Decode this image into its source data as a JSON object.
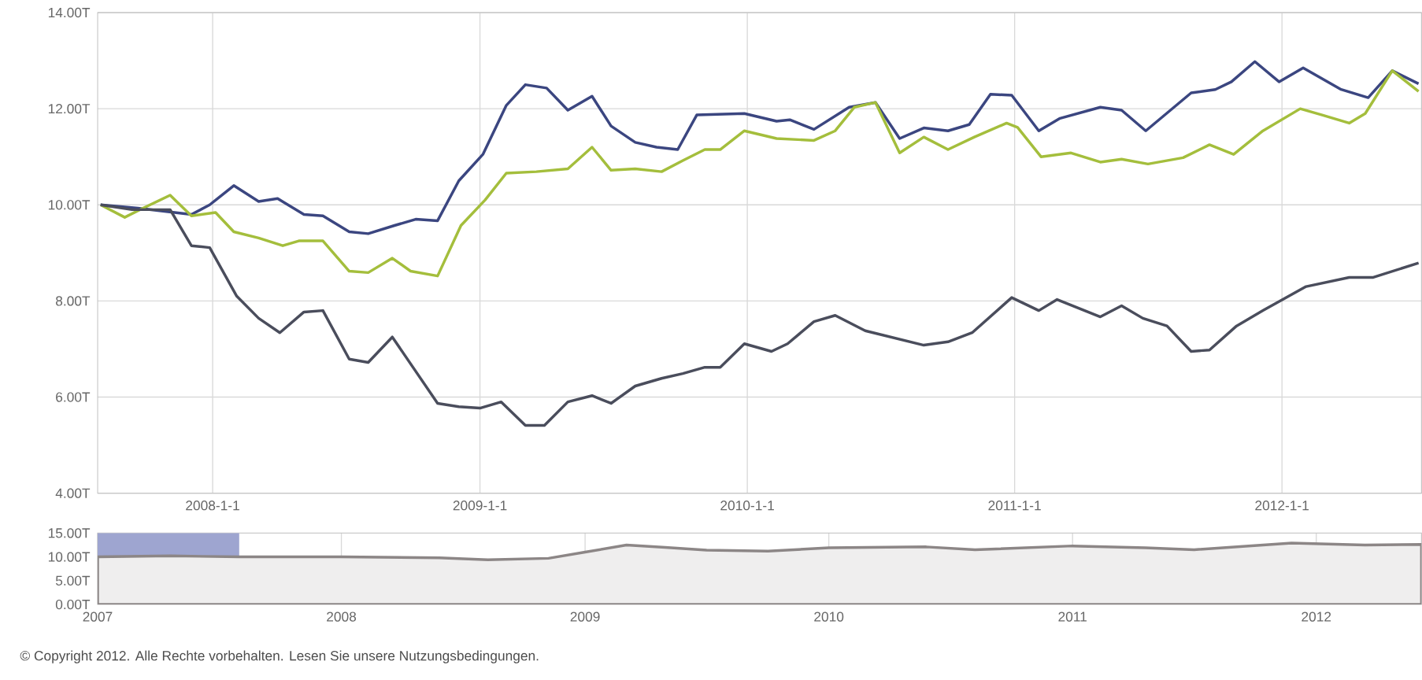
{
  "chart_data": [
    {
      "type": "line",
      "grid": true,
      "xlim": [
        "2007-07-28",
        "2012-07-10"
      ],
      "xticks": [
        {
          "value": "2008-01-01",
          "label": "2008-1-1"
        },
        {
          "value": "2009-01-01",
          "label": "2009-1-1"
        },
        {
          "value": "2010-01-01",
          "label": "2010-1-1"
        },
        {
          "value": "2011-01-01",
          "label": "2011-1-1"
        },
        {
          "value": "2012-01-01",
          "label": "2012-1-1"
        }
      ],
      "ylim": [
        4,
        14
      ],
      "yticks": [
        {
          "value": 4,
          "label": "4.00T"
        },
        {
          "value": 6,
          "label": "6.00T"
        },
        {
          "value": 8,
          "label": "8.00T"
        },
        {
          "value": 10,
          "label": "10.00T"
        },
        {
          "value": 12,
          "label": "12.00T"
        },
        {
          "value": 14,
          "label": "14.00T"
        }
      ],
      "series": [
        {
          "type": "line",
          "color": "#3b4680",
          "x": [
            "2007-08-01",
            "2007-09-21",
            "2007-12-03",
            "2007-12-28",
            "2008-01-30",
            "2008-03-04",
            "2008-03-30",
            "2008-05-05",
            "2008-05-31",
            "2008-07-06",
            "2008-08-01",
            "2008-09-06",
            "2008-10-05",
            "2008-11-04",
            "2008-12-03",
            "2009-01-05",
            "2009-02-06",
            "2009-03-04",
            "2009-04-02",
            "2009-05-01",
            "2009-06-03",
            "2009-06-29",
            "2009-08-01",
            "2009-08-30",
            "2009-09-28",
            "2009-10-24",
            "2009-12-28",
            "2010-02-10",
            "2010-02-28",
            "2010-04-02",
            "2010-05-20",
            "2010-06-25",
            "2010-07-28",
            "2010-08-30",
            "2010-10-02",
            "2010-10-31",
            "2010-11-29",
            "2010-12-28",
            "2011-02-03",
            "2011-03-04",
            "2011-04-28",
            "2011-05-27",
            "2011-06-29",
            "2011-08-30",
            "2011-10-02",
            "2011-10-24",
            "2011-11-25",
            "2011-12-28",
            "2012-01-30",
            "2012-03-22",
            "2012-04-28",
            "2012-05-31",
            "2012-07-06"
          ],
          "values": [
            10.0,
            9.93,
            9.8,
            10.0,
            10.4,
            10.07,
            10.13,
            9.8,
            9.77,
            9.44,
            9.4,
            9.57,
            9.7,
            9.67,
            10.5,
            11.05,
            12.07,
            12.5,
            12.43,
            11.97,
            12.26,
            11.64,
            11.3,
            11.2,
            11.15,
            11.87,
            11.9,
            11.74,
            11.77,
            11.57,
            12.03,
            12.13,
            11.38,
            11.6,
            11.54,
            11.67,
            12.3,
            12.28,
            11.54,
            11.8,
            12.03,
            11.97,
            11.54,
            12.33,
            12.4,
            12.56,
            12.98,
            12.56,
            12.85,
            12.4,
            12.23,
            12.79,
            12.52
          ]
        },
        {
          "type": "line",
          "color": "#a4be3c",
          "x": [
            "2007-08-01",
            "2007-09-03",
            "2007-09-28",
            "2007-11-04",
            "2007-12-03",
            "2008-01-05",
            "2008-01-30",
            "2008-03-04",
            "2008-04-06",
            "2008-04-28",
            "2008-05-31",
            "2008-07-06",
            "2008-08-01",
            "2008-09-03",
            "2008-09-28",
            "2008-11-04",
            "2008-12-06",
            "2009-01-08",
            "2009-02-06",
            "2009-03-19",
            "2009-05-01",
            "2009-06-03",
            "2009-06-29",
            "2009-08-01",
            "2009-09-06",
            "2009-10-05",
            "2009-11-04",
            "2009-11-25",
            "2009-12-28",
            "2010-02-10",
            "2010-04-02",
            "2010-05-01",
            "2010-05-27",
            "2010-06-25",
            "2010-07-28",
            "2010-08-30",
            "2010-10-02",
            "2010-11-07",
            "2010-12-21",
            "2011-01-05",
            "2011-02-06",
            "2011-03-19",
            "2011-04-28",
            "2011-05-27",
            "2011-07-02",
            "2011-08-19",
            "2011-09-24",
            "2011-10-27",
            "2011-12-06",
            "2012-01-26",
            "2012-02-25",
            "2012-04-02",
            "2012-04-24",
            "2012-05-31",
            "2012-07-06"
          ],
          "values": [
            10.0,
            9.74,
            9.93,
            10.2,
            9.77,
            9.84,
            9.44,
            9.31,
            9.15,
            9.25,
            9.25,
            8.62,
            8.59,
            8.89,
            8.62,
            8.52,
            9.57,
            10.1,
            10.66,
            10.69,
            10.75,
            11.2,
            10.72,
            10.75,
            10.69,
            10.92,
            11.15,
            11.15,
            11.54,
            11.38,
            11.34,
            11.54,
            12.03,
            12.13,
            11.08,
            11.41,
            11.15,
            11.41,
            11.7,
            11.61,
            11.0,
            11.08,
            10.89,
            10.95,
            10.85,
            10.98,
            11.25,
            11.05,
            11.54,
            12.0,
            11.87,
            11.7,
            11.9,
            12.79,
            12.36
          ]
        },
        {
          "type": "line",
          "color": "#4a4d5c",
          "x": [
            "2007-08-01",
            "2007-09-13",
            "2007-11-04",
            "2007-12-03",
            "2007-12-28",
            "2008-02-03",
            "2008-03-04",
            "2008-04-02",
            "2008-05-05",
            "2008-05-31",
            "2008-07-06",
            "2008-08-01",
            "2008-09-03",
            "2008-11-04",
            "2008-12-03",
            "2009-01-01",
            "2009-01-30",
            "2009-03-04",
            "2009-03-30",
            "2009-05-01",
            "2009-06-03",
            "2009-06-29",
            "2009-08-01",
            "2009-09-06",
            "2009-10-05",
            "2009-11-04",
            "2009-11-25",
            "2009-12-28",
            "2010-02-03",
            "2010-02-25",
            "2010-04-02",
            "2010-05-01",
            "2010-06-11",
            "2010-08-30",
            "2010-10-02",
            "2010-11-04",
            "2010-12-28",
            "2011-02-03",
            "2011-02-28",
            "2011-04-28",
            "2011-05-27",
            "2011-06-25",
            "2011-07-28",
            "2011-08-30",
            "2011-09-24",
            "2011-10-31",
            "2011-12-06",
            "2012-02-03",
            "2012-04-02",
            "2012-05-05",
            "2012-07-06"
          ],
          "values": [
            10.0,
            9.9,
            9.9,
            9.15,
            9.11,
            8.1,
            7.64,
            7.34,
            7.77,
            7.8,
            6.79,
            6.72,
            7.25,
            5.87,
            5.8,
            5.77,
            5.9,
            5.41,
            5.41,
            5.9,
            6.03,
            5.87,
            6.23,
            6.39,
            6.49,
            6.62,
            6.62,
            7.11,
            6.95,
            7.11,
            7.57,
            7.7,
            7.38,
            7.08,
            7.15,
            7.34,
            8.07,
            7.8,
            8.03,
            7.67,
            7.9,
            7.64,
            7.48,
            6.95,
            6.98,
            7.48,
            7.8,
            8.3,
            8.49,
            8.49,
            8.79
          ]
        }
      ]
    },
    {
      "type": "area",
      "grid": "x",
      "xlim": [
        "2007-01-01",
        "2012-06-07"
      ],
      "xticks": [
        "2007",
        "2008",
        "2009",
        "2010",
        "2011",
        "2012"
      ],
      "ylim": [
        0,
        15
      ],
      "yticks": [
        {
          "value": 0,
          "label": "0.00T"
        },
        {
          "value": 5,
          "label": "5.00T"
        },
        {
          "value": 10,
          "label": "10.00T"
        },
        {
          "value": 15,
          "label": "15.00T"
        }
      ],
      "bands": [
        {
          "axis": "x",
          "from": "2007-01-01",
          "to": "2007-08-01",
          "color": "#9ea5d0"
        }
      ],
      "series": [
        {
          "color": "#8c8686",
          "x": [
            "2007-01-01",
            "2007-04-20",
            "2007-08-01",
            "2008-01-01",
            "2008-05-27",
            "2008-08-08",
            "2008-11-07",
            "2009-01-01",
            "2009-03-04",
            "2009-05-01",
            "2009-07-02",
            "2009-10-02",
            "2010-01-01",
            "2010-05-27",
            "2010-08-08",
            "2011-01-01",
            "2011-04-20",
            "2011-07-02",
            "2011-11-25",
            "2012-03-14",
            "2012-06-07"
          ],
          "values": [
            10.0,
            10.2,
            10.0,
            10.0,
            9.8,
            9.4,
            9.7,
            11.0,
            12.5,
            12.0,
            11.4,
            11.2,
            11.9,
            12.1,
            11.5,
            12.3,
            11.9,
            11.5,
            12.9,
            12.5,
            12.6
          ]
        }
      ],
      "annotations": [
        "© Copyright 2012. Alle Rechte vorbehalten. Lesen Sie unsere Nutzungsbedingungen."
      ]
    }
  ]
}
